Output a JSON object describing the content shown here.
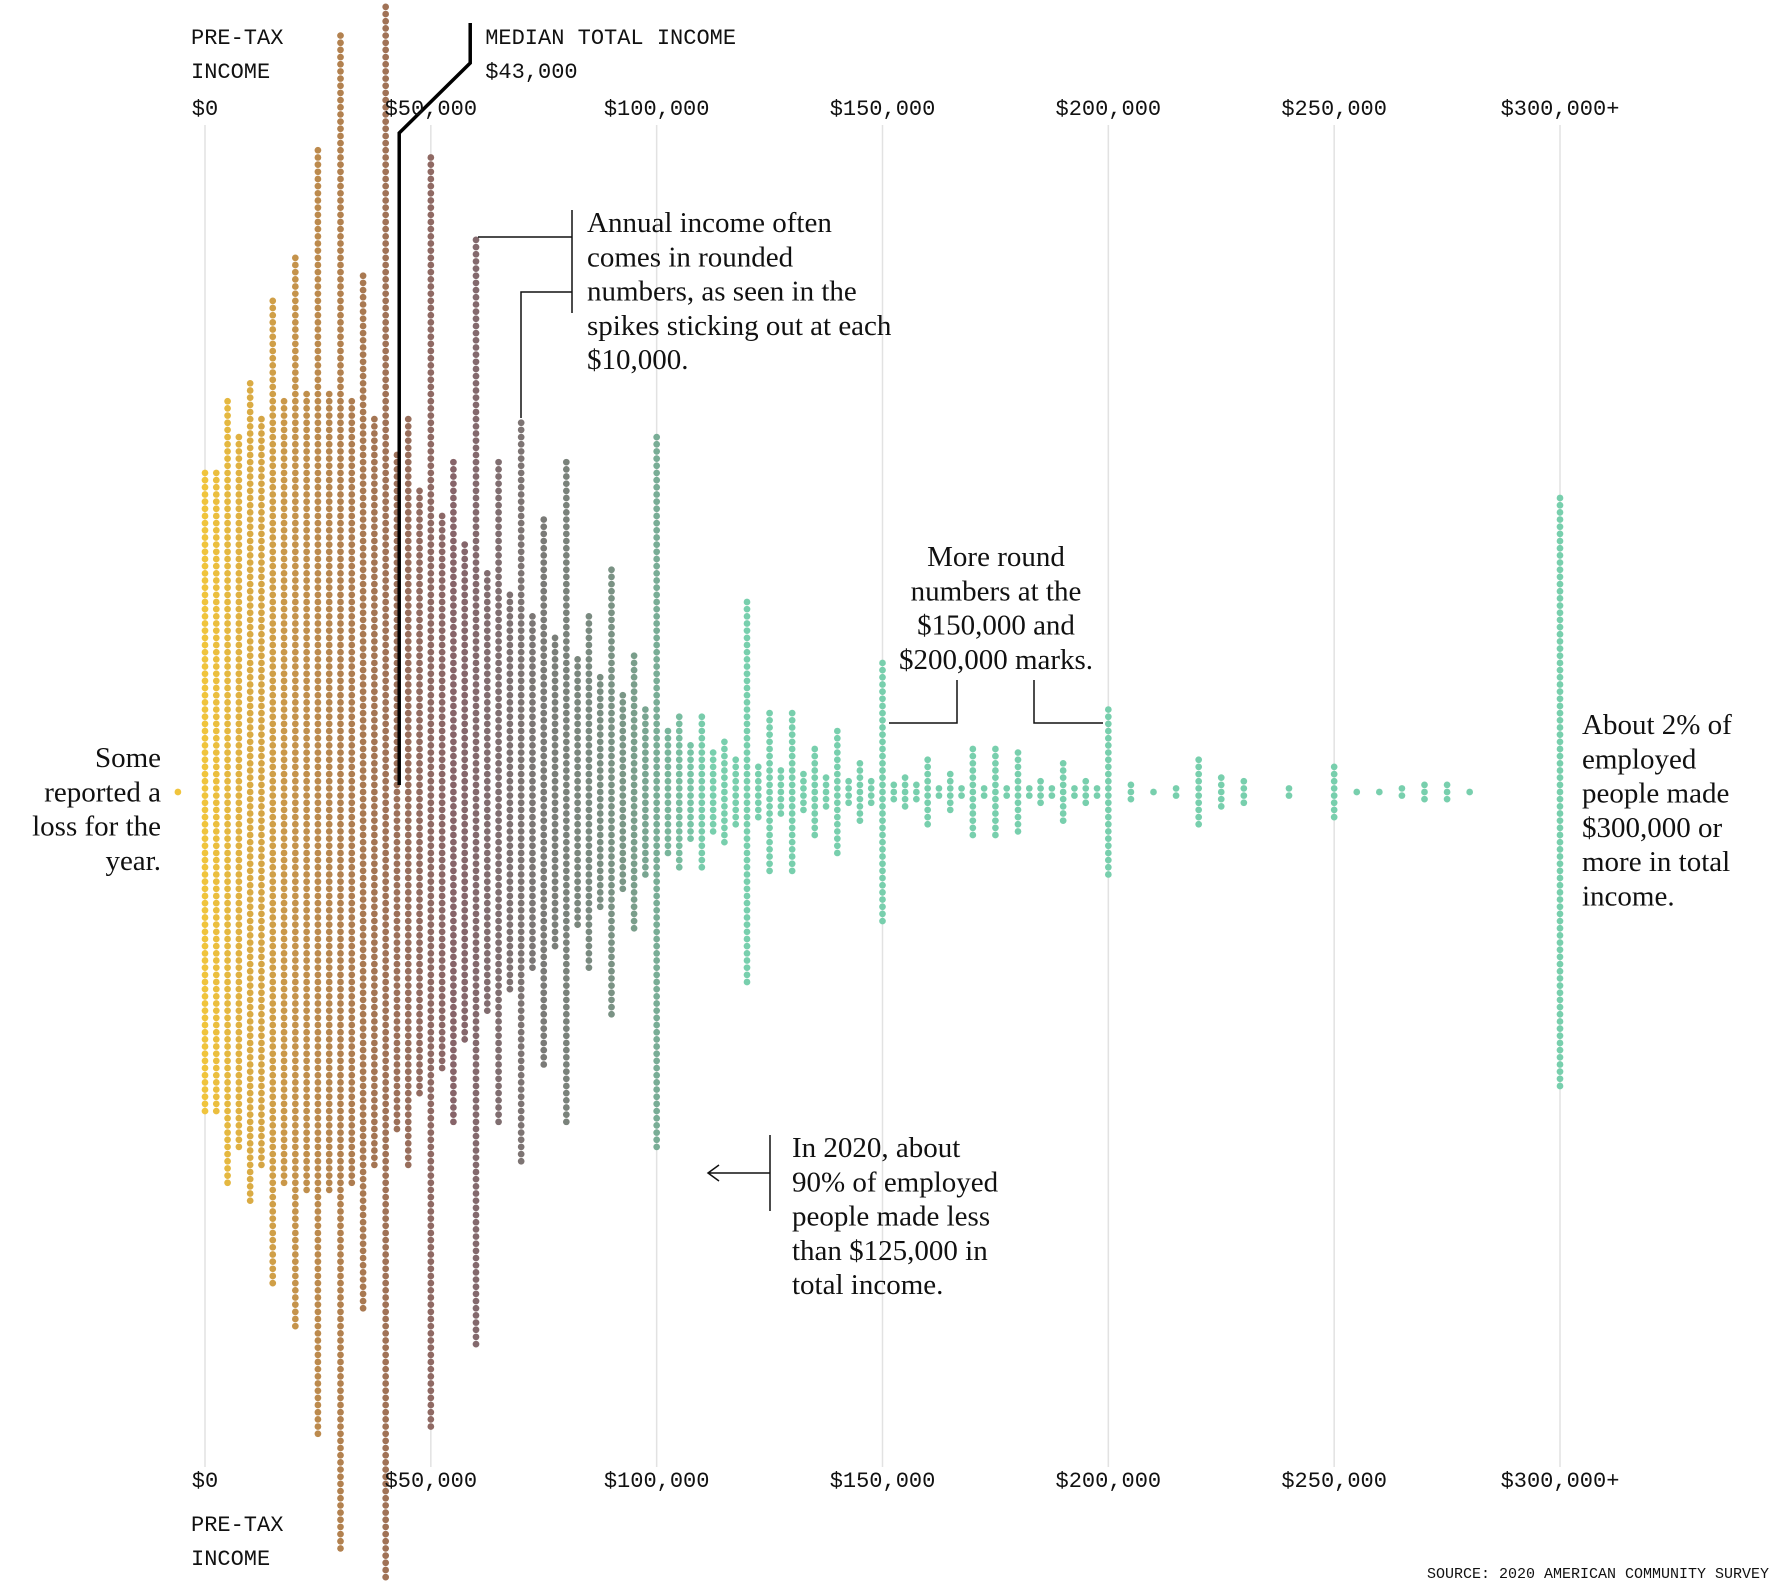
{
  "chart_data": {
    "type": "beeswarm",
    "x_label": [
      "PRE-TAX",
      "INCOME"
    ],
    "x": [
      -6000,
      0,
      2500,
      5000,
      7500,
      10000,
      12500,
      15000,
      17500,
      20000,
      22500,
      25000,
      27500,
      30000,
      32500,
      35000,
      37500,
      40000,
      42500,
      45000,
      47500,
      50000,
      52500,
      55000,
      57500,
      60000,
      62500,
      65000,
      67500,
      70000,
      72500,
      75000,
      77500,
      80000,
      82500,
      85000,
      87500,
      90000,
      92500,
      95000,
      97500,
      100000,
      102500,
      105000,
      107500,
      110000,
      112500,
      115000,
      117500,
      120000,
      122500,
      125000,
      127500,
      130000,
      132500,
      135000,
      137500,
      140000,
      142500,
      145000,
      147500,
      150000,
      152500,
      155000,
      157500,
      160000,
      162500,
      165000,
      167500,
      170000,
      172500,
      175000,
      177500,
      180000,
      182500,
      185000,
      187500,
      190000,
      192500,
      195000,
      197500,
      200000,
      205000,
      210000,
      215000,
      220000,
      225000,
      230000,
      240000,
      250000,
      255000,
      260000,
      265000,
      270000,
      275000,
      280000,
      300000
    ],
    "values": [
      1,
      90,
      90,
      110,
      100,
      115,
      105,
      138,
      110,
      150,
      112,
      180,
      112,
      212,
      110,
      145,
      105,
      220,
      95,
      105,
      85,
      178,
      78,
      93,
      70,
      155,
      62,
      93,
      56,
      104,
      50,
      77,
      44,
      93,
      38,
      50,
      33,
      63,
      28,
      39,
      24,
      100,
      18,
      22,
      14,
      22,
      12,
      15,
      10,
      54,
      8,
      23,
      7,
      23,
      6,
      13,
      5,
      18,
      4,
      9,
      4,
      37,
      3,
      5,
      3,
      10,
      2,
      6,
      2,
      13,
      2,
      13,
      2,
      12,
      2,
      4,
      2,
      9,
      2,
      4,
      2,
      24,
      3,
      1,
      2,
      10,
      5,
      4,
      2,
      8,
      1,
      1,
      2,
      3,
      3,
      1,
      83
    ],
    "colors": [
      "#f0c43c",
      "#c8964a",
      "#a57552",
      "#86646a",
      "#7a7876",
      "#7a9686",
      "#78cfad"
    ],
    "xlim": [
      0,
      300000
    ],
    "xticks": [
      {
        "value": 0,
        "label": "$0"
      },
      {
        "value": 50000,
        "label": "$50,000"
      },
      {
        "value": 100000,
        "label": "$100,000"
      },
      {
        "value": 150000,
        "label": "$150,000"
      },
      {
        "value": 200000,
        "label": "$200,000"
      },
      {
        "value": 250000,
        "label": "$250,000"
      },
      {
        "value": 300000,
        "label": "$300,000+"
      }
    ],
    "grid": true,
    "median": {
      "name": "MEDIAN TOTAL INCOME",
      "value": 43000,
      "label": "$43,000"
    },
    "annotations": [
      {
        "lines": [
          "Annual income often",
          "comes in rounded",
          "numbers, as seen in the",
          "spikes sticking out at each",
          "$10,000."
        ]
      },
      {
        "lines": [
          "More round",
          "numbers at the",
          "$150,000 and",
          "$200,000 marks."
        ]
      },
      {
        "lines": [
          "In 2020, about",
          "90% of employed",
          "people made less",
          "than $125,000 in",
          "total income."
        ]
      },
      {
        "lines": [
          "About 2% of",
          "employed",
          "people made",
          "$300,000 or",
          "more in total",
          "income."
        ]
      },
      {
        "lines": [
          "Some",
          "reported a",
          "loss for the",
          "year."
        ]
      }
    ],
    "source": "SOURCE: 2020 AMERICAN COMMUNITY SURVEY"
  }
}
